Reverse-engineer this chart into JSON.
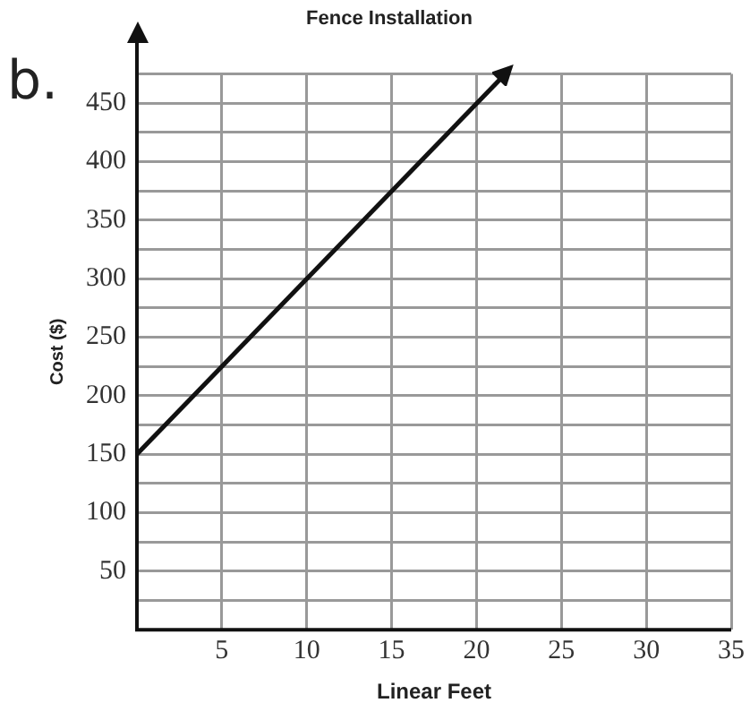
{
  "chart_data": {
    "type": "line",
    "title": "Fence Installation",
    "xlabel": "Linear Feet",
    "ylabel": "Cost ($)",
    "annotations": [
      "b."
    ],
    "x": [
      0,
      21.7
    ],
    "series": [
      {
        "color": "#111111",
        "values": [
          150,
          475
        ]
      }
    ],
    "xlim": [
      0,
      35
    ],
    "xticks": [
      {
        "value": 0,
        "label": null
      },
      5,
      10,
      15,
      20,
      25,
      30,
      35
    ],
    "ylim": [
      0,
      475
    ],
    "yticks": [
      {
        "value": 0,
        "label": null
      },
      {
        "value": 25,
        "label": null
      },
      50,
      {
        "value": 75,
        "label": null
      },
      100,
      {
        "value": 125,
        "label": null
      },
      150,
      {
        "value": 175,
        "label": null
      },
      200,
      {
        "value": 225,
        "label": null
      },
      250,
      {
        "value": 275,
        "label": null
      },
      300,
      {
        "value": 325,
        "label": null
      },
      350,
      {
        "value": 375,
        "label": null
      },
      400,
      {
        "value": 425,
        "label": null
      },
      450,
      {
        "value": 475,
        "label": null
      }
    ],
    "grid": true,
    "legend": false,
    "line_style": "solid"
  }
}
